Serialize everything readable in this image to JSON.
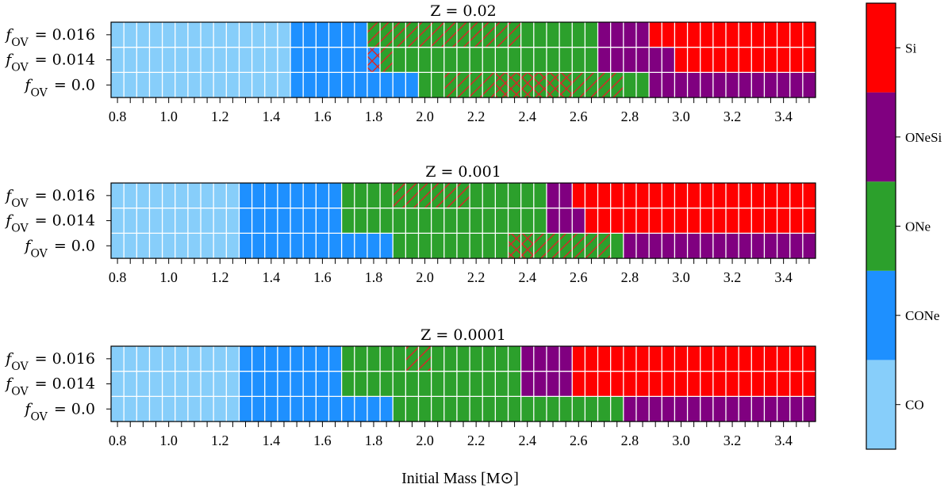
{
  "chart_data": {
    "type": "heatmap",
    "x_label": "Initial Mass [M⊙]",
    "x_ticks": [
      "0.8",
      "1.0",
      "1.2",
      "1.4",
      "1.6",
      "1.8",
      "2.0",
      "2.2",
      "2.4",
      "2.6",
      "2.8",
      "3.0",
      "3.2",
      "3.4"
    ],
    "masses": [
      0.8,
      0.85,
      0.9,
      0.95,
      1.0,
      1.05,
      1.1,
      1.15,
      1.2,
      1.25,
      1.3,
      1.35,
      1.4,
      1.45,
      1.5,
      1.55,
      1.6,
      1.65,
      1.7,
      1.75,
      1.8,
      1.85,
      1.9,
      1.95,
      2.0,
      2.05,
      2.1,
      2.15,
      2.2,
      2.25,
      2.3,
      2.35,
      2.4,
      2.45,
      2.5,
      2.55,
      2.6,
      2.65,
      2.7,
      2.75,
      2.8,
      2.85,
      2.9,
      2.95,
      3.0,
      3.05,
      3.1,
      3.15,
      3.2,
      3.25,
      3.3,
      3.35,
      3.4,
      3.45,
      3.5
    ],
    "colorbar": {
      "categories": [
        "CO",
        "CONe",
        "ONe",
        "ONeSi",
        "Si"
      ],
      "colors": [
        "#87cefa",
        "#1e90ff",
        "#2ca02c",
        "#800080",
        "#ff0000"
      ]
    },
    "hatch_color": "#d62728",
    "legend_placement": "right colorbar",
    "panels": [
      {
        "title": "Z = 0.02",
        "rows": [
          {
            "label": "f_OV = 0.016",
            "segments": [
              [
                0.8,
                1.45,
                "CO"
              ],
              [
                1.5,
                1.75,
                "CONe"
              ],
              [
                1.8,
                1.85,
                "ONe"
              ],
              [
                1.9,
                2.65,
                "ONe"
              ],
              [
                2.7,
                2.85,
                "ONeSi"
              ],
              [
                2.9,
                3.5,
                "Si"
              ]
            ],
            "hatch_single": [
              1.8,
              1.85,
              1.9,
              1.95,
              2.0,
              2.05,
              2.1,
              2.15,
              2.2,
              2.25,
              2.3,
              2.35
            ],
            "hatch_cross": []
          },
          {
            "label": "f_OV = 0.014",
            "segments": [
              [
                0.8,
                1.45,
                "CO"
              ],
              [
                1.5,
                1.75,
                "CONe"
              ],
              [
                1.8,
                1.8,
                "CONe"
              ],
              [
                1.85,
                1.85,
                "ONe"
              ],
              [
                1.9,
                2.65,
                "ONe"
              ],
              [
                2.7,
                2.95,
                "ONeSi"
              ],
              [
                3.0,
                3.5,
                "Si"
              ]
            ],
            "hatch_single": [
              1.85
            ],
            "hatch_cross": [
              1.8
            ]
          },
          {
            "label": "f_OV = 0.0",
            "segments": [
              [
                0.8,
                1.45,
                "CO"
              ],
              [
                1.5,
                1.95,
                "CONe"
              ],
              [
                2.0,
                2.85,
                "ONe"
              ],
              [
                2.9,
                3.5,
                "ONeSi"
              ]
            ],
            "hatch_single": [
              2.1,
              2.15,
              2.2,
              2.25,
              2.6,
              2.65,
              2.7,
              2.75
            ],
            "hatch_cross": [
              2.3,
              2.35,
              2.4,
              2.45,
              2.5,
              2.55
            ]
          }
        ]
      },
      {
        "title": "Z = 0.001",
        "rows": [
          {
            "label": "f_OV = 0.016",
            "segments": [
              [
                0.8,
                1.25,
                "CO"
              ],
              [
                1.3,
                1.65,
                "CONe"
              ],
              [
                1.7,
                2.45,
                "ONe"
              ],
              [
                2.5,
                2.55,
                "ONeSi"
              ],
              [
                2.6,
                3.5,
                "Si"
              ]
            ],
            "hatch_single": [
              1.9,
              1.95,
              2.0,
              2.05,
              2.1,
              2.15
            ],
            "hatch_cross": []
          },
          {
            "label": "f_OV = 0.014",
            "segments": [
              [
                0.8,
                1.25,
                "CO"
              ],
              [
                1.3,
                1.65,
                "CONe"
              ],
              [
                1.7,
                2.45,
                "ONe"
              ],
              [
                2.5,
                2.6,
                "ONeSi"
              ],
              [
                2.65,
                3.5,
                "Si"
              ]
            ],
            "hatch_single": [],
            "hatch_cross": []
          },
          {
            "label": "f_OV = 0.0",
            "segments": [
              [
                0.8,
                1.25,
                "CO"
              ],
              [
                1.3,
                1.85,
                "CONe"
              ],
              [
                1.9,
                2.75,
                "ONe"
              ],
              [
                2.8,
                3.5,
                "ONeSi"
              ]
            ],
            "hatch_single": [
              2.45,
              2.5,
              2.55,
              2.6,
              2.65,
              2.7
            ],
            "hatch_cross": [
              2.35,
              2.4
            ]
          }
        ]
      },
      {
        "title": "Z = 0.0001",
        "rows": [
          {
            "label": "f_OV = 0.016",
            "segments": [
              [
                0.8,
                1.25,
                "CO"
              ],
              [
                1.3,
                1.65,
                "CONe"
              ],
              [
                1.7,
                2.35,
                "ONe"
              ],
              [
                2.4,
                2.55,
                "ONeSi"
              ],
              [
                2.6,
                3.5,
                "Si"
              ]
            ],
            "hatch_single": [
              1.95,
              2.0
            ],
            "hatch_cross": []
          },
          {
            "label": "f_OV = 0.014",
            "segments": [
              [
                0.8,
                1.25,
                "CO"
              ],
              [
                1.3,
                1.65,
                "CONe"
              ],
              [
                1.7,
                2.35,
                "ONe"
              ],
              [
                2.4,
                2.55,
                "ONeSi"
              ],
              [
                2.6,
                3.5,
                "Si"
              ]
            ],
            "hatch_single": [],
            "hatch_cross": []
          },
          {
            "label": "f_OV = 0.0",
            "segments": [
              [
                0.8,
                1.25,
                "CO"
              ],
              [
                1.3,
                1.85,
                "CONe"
              ],
              [
                1.9,
                2.75,
                "ONe"
              ],
              [
                2.8,
                3.5,
                "ONeSi"
              ]
            ],
            "hatch_single": [],
            "hatch_cross": []
          }
        ]
      }
    ]
  }
}
